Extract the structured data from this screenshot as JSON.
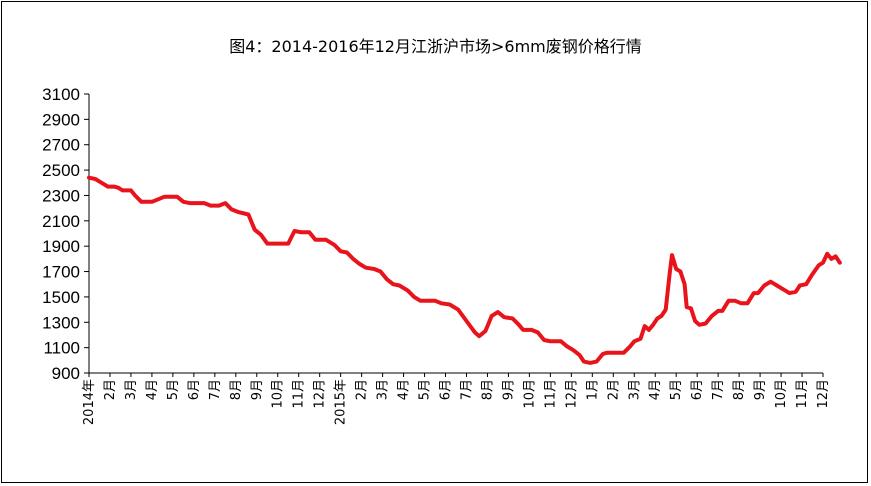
{
  "chart_data": {
    "type": "line",
    "title": "图4：2014-2016年12月江浙沪市场>6mm废钢价格行情",
    "xlabel": "",
    "ylabel": "",
    "ylim": [
      900,
      3100
    ],
    "yticks": [
      900,
      1100,
      1300,
      1500,
      1700,
      1900,
      2100,
      2300,
      2500,
      2700,
      2900,
      3100
    ],
    "grid": false,
    "legend": "none",
    "line_color": "#e8131b",
    "x_tick_labels": [
      "2014年",
      "2月",
      "3月",
      "4月",
      "5月",
      "6月",
      "7月",
      "8月",
      "9月",
      "10月",
      "11月",
      "12月",
      "2015年",
      "2月",
      "3月",
      "4月",
      "5月",
      "6月",
      "7月",
      "8月",
      "9月",
      "10月",
      "11月",
      "12月",
      "1月",
      "2月",
      "3月",
      "4月",
      "5月",
      "6月",
      "7月",
      "8月",
      "9月",
      "10月",
      "11月",
      "12月"
    ],
    "series": [
      {
        "values": [
          [
            0,
            2440
          ],
          [
            0.3,
            2430
          ],
          [
            0.6,
            2400
          ],
          [
            0.9,
            2370
          ],
          [
            1.2,
            2370
          ],
          [
            1.4,
            2360
          ],
          [
            1.6,
            2340
          ],
          [
            2.0,
            2340
          ],
          [
            2.2,
            2300
          ],
          [
            2.5,
            2250
          ],
          [
            3.0,
            2250
          ],
          [
            3.3,
            2270
          ],
          [
            3.6,
            2290
          ],
          [
            4.2,
            2290
          ],
          [
            4.5,
            2250
          ],
          [
            4.8,
            2240
          ],
          [
            5.5,
            2240
          ],
          [
            5.8,
            2220
          ],
          [
            6.2,
            2220
          ],
          [
            6.5,
            2240
          ],
          [
            6.8,
            2190
          ],
          [
            7.1,
            2170
          ],
          [
            7.6,
            2150
          ],
          [
            7.9,
            2030
          ],
          [
            8.2,
            1990
          ],
          [
            8.5,
            1920
          ],
          [
            9.0,
            1920
          ],
          [
            9.5,
            1920
          ],
          [
            9.8,
            2020
          ],
          [
            10.1,
            2010
          ],
          [
            10.5,
            2010
          ],
          [
            10.8,
            1950
          ],
          [
            11.3,
            1950
          ],
          [
            11.7,
            1910
          ],
          [
            12.0,
            1860
          ],
          [
            12.3,
            1850
          ],
          [
            12.6,
            1800
          ],
          [
            12.9,
            1760
          ],
          [
            13.2,
            1730
          ],
          [
            13.6,
            1720
          ],
          [
            13.9,
            1700
          ],
          [
            14.2,
            1640
          ],
          [
            14.5,
            1600
          ],
          [
            14.8,
            1590
          ],
          [
            15.2,
            1550
          ],
          [
            15.5,
            1500
          ],
          [
            15.8,
            1470
          ],
          [
            16.2,
            1470
          ],
          [
            16.5,
            1470
          ],
          [
            16.8,
            1450
          ],
          [
            17.2,
            1440
          ],
          [
            17.6,
            1400
          ],
          [
            18.0,
            1310
          ],
          [
            18.4,
            1220
          ],
          [
            18.6,
            1190
          ],
          [
            18.9,
            1230
          ],
          [
            19.2,
            1350
          ],
          [
            19.5,
            1380
          ],
          [
            19.8,
            1340
          ],
          [
            20.2,
            1330
          ],
          [
            20.5,
            1280
          ],
          [
            20.7,
            1240
          ],
          [
            21.1,
            1240
          ],
          [
            21.4,
            1220
          ],
          [
            21.7,
            1160
          ],
          [
            22.0,
            1150
          ],
          [
            22.5,
            1150
          ],
          [
            22.8,
            1110
          ],
          [
            23.1,
            1080
          ],
          [
            23.4,
            1040
          ],
          [
            23.6,
            990
          ],
          [
            23.9,
            980
          ],
          [
            24.2,
            990
          ],
          [
            24.5,
            1050
          ],
          [
            24.7,
            1060
          ],
          [
            25.0,
            1060
          ],
          [
            25.5,
            1060
          ],
          [
            25.8,
            1110
          ],
          [
            26.0,
            1150
          ],
          [
            26.3,
            1170
          ],
          [
            26.5,
            1270
          ],
          [
            26.7,
            1240
          ],
          [
            26.9,
            1280
          ],
          [
            27.1,
            1330
          ],
          [
            27.3,
            1350
          ],
          [
            27.5,
            1400
          ],
          [
            27.7,
            1700
          ],
          [
            27.8,
            1830
          ],
          [
            28.0,
            1720
          ],
          [
            28.2,
            1700
          ],
          [
            28.4,
            1600
          ],
          [
            28.5,
            1420
          ],
          [
            28.7,
            1410
          ],
          [
            28.9,
            1310
          ],
          [
            29.1,
            1280
          ],
          [
            29.4,
            1290
          ],
          [
            29.7,
            1350
          ],
          [
            30.0,
            1390
          ],
          [
            30.2,
            1390
          ],
          [
            30.5,
            1470
          ],
          [
            30.8,
            1470
          ],
          [
            31.1,
            1450
          ],
          [
            31.4,
            1450
          ],
          [
            31.7,
            1530
          ],
          [
            31.9,
            1530
          ],
          [
            32.2,
            1590
          ],
          [
            32.5,
            1620
          ],
          [
            32.8,
            1590
          ],
          [
            33.1,
            1560
          ],
          [
            33.4,
            1530
          ],
          [
            33.7,
            1540
          ],
          [
            33.9,
            1590
          ],
          [
            34.2,
            1600
          ],
          [
            34.5,
            1680
          ],
          [
            34.8,
            1750
          ],
          [
            35.0,
            1770
          ],
          [
            35.2,
            1840
          ],
          [
            35.4,
            1800
          ],
          [
            35.6,
            1820
          ],
          [
            35.8,
            1770
          ]
        ]
      }
    ]
  }
}
